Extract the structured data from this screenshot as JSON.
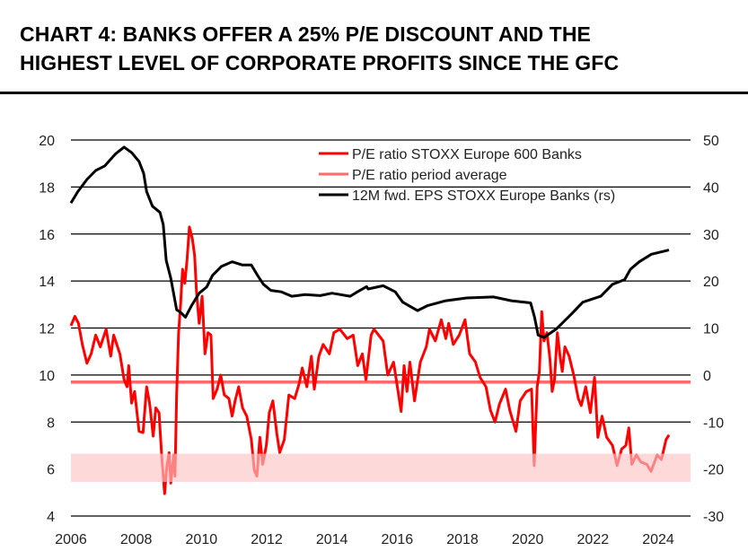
{
  "title_lines": [
    "CHART 4: BANKS OFFER A 25% P/E DISCOUNT AND THE",
    "HIGHEST LEVEL OF CORPORATE PROFITS SINCE THE GFC"
  ],
  "chart_data": {
    "type": "line",
    "title": "CHART 4: BANKS OFFER A 25% P/E DISCOUNT AND THE HIGHEST LEVEL OF CORPORATE PROFITS SINCE THE GFC",
    "xlabel": "",
    "ylabel": "",
    "y2label": "",
    "xlim": [
      2006,
      2025
    ],
    "xticks": [
      "2006",
      "2008",
      "2010",
      "2012",
      "2014",
      "2016",
      "2018",
      "2020",
      "2022",
      "2024"
    ],
    "ylim": [
      4,
      20
    ],
    "yticks": [
      "4",
      "6",
      "8",
      "10",
      "12",
      "14",
      "16",
      "18",
      "20"
    ],
    "y2lim": [
      -30,
      50
    ],
    "y2ticks": [
      "-30",
      "-20",
      "-10",
      "0",
      "10",
      "20",
      "30",
      "40",
      "50"
    ],
    "grid": true,
    "legend_position": "top-right",
    "shaded_band": {
      "from": 5.45,
      "to": 6.65,
      "axis": "left",
      "color": "#fdd9d9"
    },
    "series": [
      {
        "name": "P/E ratio STOXX Europe 600 Banks",
        "axis": "left",
        "color": "#ff0000",
        "x": [
          2006.0,
          2006.12,
          2006.23,
          2006.35,
          2006.49,
          2006.62,
          2006.76,
          2006.9,
          2007.08,
          2007.22,
          2007.31,
          2007.5,
          2007.63,
          2007.72,
          2007.77,
          2007.86,
          2007.95,
          2008.09,
          2008.21,
          2008.32,
          2008.41,
          2008.52,
          2008.6,
          2008.7,
          2008.78,
          2008.87,
          2008.94,
          2009.01,
          2009.06,
          2009.15,
          2009.19,
          2009.24,
          2009.3,
          2009.36,
          2009.42,
          2009.49,
          2009.56,
          2009.63,
          2009.72,
          2009.79,
          2009.85,
          2009.93,
          2010.02,
          2010.11,
          2010.2,
          2010.29,
          2010.36,
          2010.48,
          2010.59,
          2010.7,
          2010.84,
          2010.94,
          2011.03,
          2011.14,
          2011.26,
          2011.39,
          2011.53,
          2011.62,
          2011.7,
          2011.79,
          2011.88,
          2011.99,
          2012.08,
          2012.19,
          2012.31,
          2012.4,
          2012.54,
          2012.68,
          2012.86,
          2013.0,
          2013.09,
          2013.23,
          2013.37,
          2013.46,
          2013.6,
          2013.73,
          2013.92,
          2014.06,
          2014.24,
          2014.47,
          2014.65,
          2014.79,
          2014.93,
          2015.04,
          2015.2,
          2015.29,
          2015.57,
          2015.71,
          2015.89,
          2016.12,
          2016.21,
          2016.3,
          2016.39,
          2016.53,
          2016.71,
          2016.89,
          2016.99,
          2017.17,
          2017.35,
          2017.49,
          2017.58,
          2017.72,
          2017.9,
          2018.08,
          2018.22,
          2018.4,
          2018.54,
          2018.72,
          2018.86,
          2019.0,
          2019.13,
          2019.32,
          2019.45,
          2019.64,
          2019.77,
          2019.96,
          2020.12,
          2020.2,
          2020.29,
          2020.36,
          2020.43,
          2020.5,
          2020.59,
          2020.68,
          2020.75,
          2020.82,
          2020.91,
          2021.0,
          2021.06,
          2021.14,
          2021.27,
          2021.41,
          2021.55,
          2021.64,
          2021.78,
          2021.92,
          2022.05,
          2022.15,
          2022.28,
          2022.42,
          2022.6,
          2022.74,
          2022.88,
          2023.01,
          2023.1,
          2023.19,
          2023.33,
          2023.47,
          2023.65,
          2023.78,
          2023.97,
          2024.1,
          2024.24,
          2024.33
        ],
        "y": [
          12.1,
          12.5,
          12.2,
          11.3,
          10.5,
          10.9,
          11.7,
          11.2,
          11.95,
          10.8,
          11.7,
          10.9,
          9.8,
          9.5,
          10.4,
          8.8,
          9.3,
          7.6,
          7.55,
          9.5,
          8.8,
          7.4,
          8.6,
          8.4,
          6.6,
          4.95,
          6.1,
          6.7,
          5.4,
          6.6,
          5.7,
          9.15,
          11.8,
          13.0,
          14.5,
          13.9,
          14.9,
          16.3,
          15.8,
          15.1,
          13.5,
          12.2,
          13.35,
          10.9,
          11.8,
          11.7,
          9.0,
          9.4,
          10.0,
          9.15,
          9.0,
          8.25,
          8.9,
          9.5,
          8.6,
          8.25,
          7.25,
          5.95,
          5.7,
          7.35,
          6.2,
          7.0,
          8.4,
          8.9,
          7.5,
          6.7,
          7.25,
          9.15,
          9.0,
          9.65,
          10.3,
          9.5,
          10.8,
          9.4,
          10.8,
          11.3,
          10.9,
          11.8,
          11.95,
          11.55,
          11.7,
          10.4,
          10.9,
          9.8,
          11.7,
          11.95,
          11.45,
          10.0,
          10.55,
          8.45,
          10.4,
          9.3,
          10.55,
          8.9,
          10.55,
          11.2,
          11.95,
          11.45,
          12.35,
          11.55,
          12.2,
          11.3,
          11.7,
          12.35,
          10.9,
          10.55,
          9.9,
          9.5,
          8.5,
          8.0,
          8.75,
          9.4,
          8.5,
          7.6,
          8.9,
          9.3,
          9.4,
          6.15,
          9.5,
          10.15,
          12.7,
          11.45,
          11.8,
          10.7,
          9.3,
          9.8,
          11.8,
          10.7,
          10.15,
          11.2,
          10.8,
          10.0,
          9.0,
          8.7,
          9.5,
          8.4,
          9.9,
          7.35,
          8.25,
          7.35,
          7.0,
          6.15,
          6.85,
          7.0,
          7.75,
          6.2,
          6.6,
          6.3,
          6.2,
          5.9,
          6.6,
          6.4,
          7.25,
          7.45
        ]
      },
      {
        "name": "P/E ratio period average",
        "axis": "left",
        "color": "#ff6b6b",
        "x": [
          2006,
          2025
        ],
        "y": [
          9.7,
          9.7
        ]
      },
      {
        "name": "12M fwd. EPS STOXX Europe Banks (rs)",
        "axis": "right",
        "color": "#000000",
        "x": [
          2006.0,
          2006.21,
          2006.49,
          2006.76,
          2007.04,
          2007.36,
          2007.63,
          2007.86,
          2008.09,
          2008.23,
          2008.32,
          2008.5,
          2008.73,
          2008.83,
          2008.92,
          2009.06,
          2009.24,
          2009.38,
          2009.51,
          2009.7,
          2009.93,
          2010.16,
          2010.34,
          2010.61,
          2010.94,
          2011.26,
          2011.53,
          2011.72,
          2011.9,
          2012.13,
          2012.45,
          2012.77,
          2013.18,
          2013.64,
          2014.0,
          2014.56,
          2014.78,
          2015.06,
          2015.11,
          2015.57,
          2015.94,
          2016.17,
          2016.62,
          2016.94,
          2017.49,
          2018.13,
          2018.95,
          2019.5,
          2020.09,
          2020.21,
          2020.32,
          2020.5,
          2020.87,
          2021.33,
          2021.69,
          2022.24,
          2022.6,
          2022.97,
          2023.15,
          2023.42,
          2023.79,
          2024.33
        ],
        "y": [
          36.6,
          39.0,
          41.6,
          43.5,
          44.5,
          47.0,
          48.5,
          47.3,
          45.4,
          42.9,
          39.0,
          35.9,
          34.6,
          32.0,
          24.4,
          20.6,
          13.9,
          13.2,
          12.3,
          14.8,
          17.4,
          18.7,
          21.2,
          23.1,
          24.1,
          23.4,
          23.4,
          21.2,
          19.3,
          18.0,
          17.7,
          16.75,
          17.1,
          16.9,
          17.4,
          16.75,
          17.7,
          18.8,
          18.3,
          19.0,
          17.7,
          15.5,
          13.7,
          14.8,
          15.8,
          16.4,
          16.6,
          15.8,
          15.35,
          12.3,
          8.5,
          8.0,
          9.75,
          12.9,
          15.5,
          16.75,
          19.3,
          20.3,
          22.5,
          24.1,
          25.7,
          26.6
        ]
      }
    ]
  }
}
